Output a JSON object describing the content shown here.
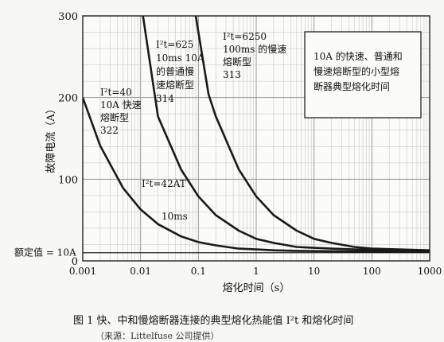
{
  "chart_data": {
    "type": "line",
    "xscale": "log",
    "xlim": [
      0.001,
      1000
    ],
    "ylim": [
      0,
      300
    ],
    "xlabel": "熔化时间（s）",
    "ylabel": "故障电流（A）",
    "x_ticks": [
      "0.001",
      "0.01",
      "0.1",
      "1",
      "10",
      "100",
      "1000"
    ],
    "y_ticks": [
      "0",
      "100",
      "200",
      "300"
    ],
    "rated_label": "额定值 = 10A",
    "rated_value": 10,
    "grid": true,
    "series": [
      {
        "x": [
          0.001,
          0.002,
          0.005,
          0.01,
          0.02,
          0.05,
          0.1,
          0.2,
          0.5,
          1,
          2,
          5,
          10,
          50,
          100,
          1000
        ],
        "y": [
          200,
          141,
          89,
          63,
          45,
          30,
          23,
          19,
          15,
          14,
          13,
          12.3,
          12,
          11.5,
          11.5,
          11
        ]
      },
      {
        "x": [
          0.011,
          0.02,
          0.05,
          0.1,
          0.2,
          0.5,
          1,
          2,
          5,
          10,
          20,
          50,
          100,
          1000
        ],
        "y": [
          300,
          177,
          112,
          79,
          56,
          37,
          27,
          22,
          17,
          16,
          15,
          14,
          13.5,
          12.5
        ]
      },
      {
        "x": [
          0.09,
          0.15,
          0.2,
          0.5,
          1,
          2,
          5,
          10,
          20,
          50,
          100,
          1000
        ],
        "y": [
          300,
          204,
          177,
          112,
          79,
          56,
          37,
          27,
          22,
          17,
          15,
          13
        ]
      }
    ],
    "annotations": {
      "a322": [
        "I²t=40",
        "10A 快速",
        "熔断型",
        "322"
      ],
      "a314": [
        "I²t=625",
        "10ms 10A",
        "的普通慢",
        "速熔断型",
        "314"
      ],
      "a313": [
        "I²t=6250",
        "100ms 的慢速",
        "熔断型",
        "313"
      ],
      "a42": "I²t=42AT",
      "a10ms": "10ms"
    },
    "legend_box": [
      "10A 的快速、普通和",
      "慢速熔断型的小型熔",
      "断器典型熔化时间"
    ]
  },
  "caption": "图 1  快、中和慢熔断器连接的典型熔化热能值 I²t 和熔化时间",
  "caption_sub": "（来源：Littelfuse 公司提供）"
}
